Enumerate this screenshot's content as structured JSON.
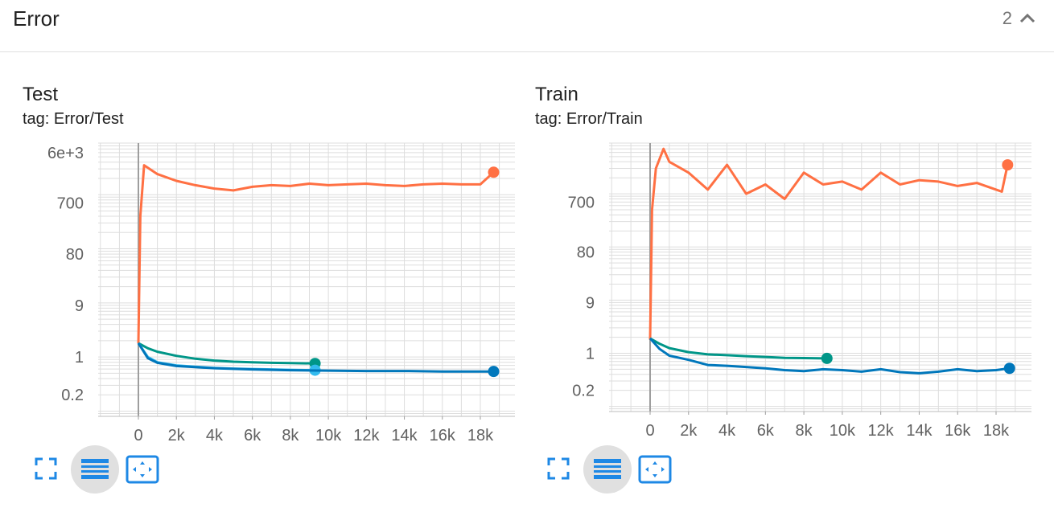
{
  "header": {
    "title": "Error",
    "count": "2",
    "collapse_icon": "chevron-up-icon"
  },
  "colors": {
    "orange": "#ff7043",
    "teal": "#009688",
    "blue": "#0077bb",
    "lightblue": "#33bbee",
    "grid": "#dddddd"
  },
  "cards": [
    {
      "title": "Test",
      "tag": "tag: Error/Test",
      "chart_data": {
        "type": "line",
        "y_scale": "log",
        "y_tick_labels": [
          "6e+3",
          "700",
          "80",
          "9",
          "1",
          "0.2"
        ],
        "x_tick_labels": [
          "0",
          "2k",
          "4k",
          "6k",
          "8k",
          "10k",
          "12k",
          "14k",
          "16k",
          "18k"
        ],
        "xlim": [
          0,
          19000
        ],
        "series": [
          {
            "color": "orange",
            "points": [
              [
                0,
                1.8
              ],
              [
                100,
                400
              ],
              [
                300,
                3500
              ],
              [
                1000,
                2400
              ],
              [
                2000,
                1800
              ],
              [
                3000,
                1500
              ],
              [
                4000,
                1300
              ],
              [
                5000,
                1200
              ],
              [
                6000,
                1400
              ],
              [
                7000,
                1500
              ],
              [
                8000,
                1450
              ],
              [
                9000,
                1600
              ],
              [
                10000,
                1500
              ],
              [
                11000,
                1550
              ],
              [
                12000,
                1600
              ],
              [
                13000,
                1500
              ],
              [
                14000,
                1450
              ],
              [
                15000,
                1550
              ],
              [
                16000,
                1600
              ],
              [
                17000,
                1550
              ],
              [
                18000,
                1550
              ],
              [
                18700,
                2600
              ]
            ]
          },
          {
            "color": "teal",
            "points": [
              [
                0,
                1.8
              ],
              [
                500,
                1.45
              ],
              [
                1000,
                1.25
              ],
              [
                2000,
                1.05
              ],
              [
                3000,
                0.93
              ],
              [
                4000,
                0.86
              ],
              [
                5000,
                0.82
              ],
              [
                6000,
                0.8
              ],
              [
                7000,
                0.78
              ],
              [
                8000,
                0.77
              ],
              [
                9300,
                0.76
              ]
            ]
          },
          {
            "color": "lightblue",
            "points": [
              [
                0,
                1.8
              ],
              [
                500,
                1.0
              ],
              [
                1000,
                0.8
              ],
              [
                2000,
                0.7
              ],
              [
                3000,
                0.66
              ],
              [
                4000,
                0.63
              ],
              [
                5000,
                0.61
              ],
              [
                6000,
                0.6
              ],
              [
                7000,
                0.59
              ],
              [
                8000,
                0.58
              ],
              [
                9300,
                0.57
              ]
            ]
          },
          {
            "color": "blue",
            "points": [
              [
                0,
                1.8
              ],
              [
                500,
                0.95
              ],
              [
                1000,
                0.78
              ],
              [
                2000,
                0.68
              ],
              [
                4000,
                0.62
              ],
              [
                6000,
                0.59
              ],
              [
                8000,
                0.57
              ],
              [
                10000,
                0.56
              ],
              [
                12000,
                0.55
              ],
              [
                14000,
                0.55
              ],
              [
                16000,
                0.54
              ],
              [
                18700,
                0.54
              ]
            ]
          }
        ]
      }
    },
    {
      "title": "Train",
      "tag": "tag: Error/Train",
      "chart_data": {
        "type": "line",
        "y_scale": "log",
        "y_tick_labels": [
          "700",
          "80",
          "9",
          "1",
          "0.2"
        ],
        "x_tick_labels": [
          "0",
          "2k",
          "4k",
          "6k",
          "8k",
          "10k",
          "12k",
          "14k",
          "16k",
          "18k"
        ],
        "xlim": [
          0,
          19000
        ],
        "series": [
          {
            "color": "orange",
            "points": [
              [
                0,
                1.8
              ],
              [
                100,
                500
              ],
              [
                300,
                3000
              ],
              [
                700,
                7000
              ],
              [
                1000,
                4000
              ],
              [
                2000,
                2500
              ],
              [
                3000,
                1200
              ],
              [
                4000,
                3500
              ],
              [
                5000,
                1000
              ],
              [
                6000,
                1500
              ],
              [
                7000,
                800
              ],
              [
                8000,
                2500
              ],
              [
                9000,
                1500
              ],
              [
                10000,
                1700
              ],
              [
                11000,
                1200
              ],
              [
                12000,
                2500
              ],
              [
                13000,
                1500
              ],
              [
                14000,
                1800
              ],
              [
                15000,
                1700
              ],
              [
                16000,
                1400
              ],
              [
                17000,
                1600
              ],
              [
                18000,
                1200
              ],
              [
                18300,
                1100
              ],
              [
                18600,
                3500
              ]
            ]
          },
          {
            "color": "teal",
            "points": [
              [
                0,
                1.9
              ],
              [
                500,
                1.5
              ],
              [
                1000,
                1.25
              ],
              [
                2000,
                1.05
              ],
              [
                3000,
                0.95
              ],
              [
                4000,
                0.92
              ],
              [
                5000,
                0.88
              ],
              [
                6000,
                0.85
              ],
              [
                7000,
                0.82
              ],
              [
                8000,
                0.81
              ],
              [
                9200,
                0.8
              ]
            ]
          },
          {
            "color": "blue",
            "points": [
              [
                0,
                1.9
              ],
              [
                500,
                1.2
              ],
              [
                1000,
                0.9
              ],
              [
                2000,
                0.75
              ],
              [
                3000,
                0.6
              ],
              [
                4000,
                0.58
              ],
              [
                5000,
                0.55
              ],
              [
                6000,
                0.52
              ],
              [
                7000,
                0.48
              ],
              [
                8000,
                0.46
              ],
              [
                9000,
                0.5
              ],
              [
                10000,
                0.48
              ],
              [
                11000,
                0.45
              ],
              [
                12000,
                0.5
              ],
              [
                13000,
                0.44
              ],
              [
                14000,
                0.42
              ],
              [
                15000,
                0.45
              ],
              [
                16000,
                0.5
              ],
              [
                17000,
                0.46
              ],
              [
                18000,
                0.48
              ],
              [
                18700,
                0.52
              ]
            ]
          }
        ]
      }
    }
  ]
}
